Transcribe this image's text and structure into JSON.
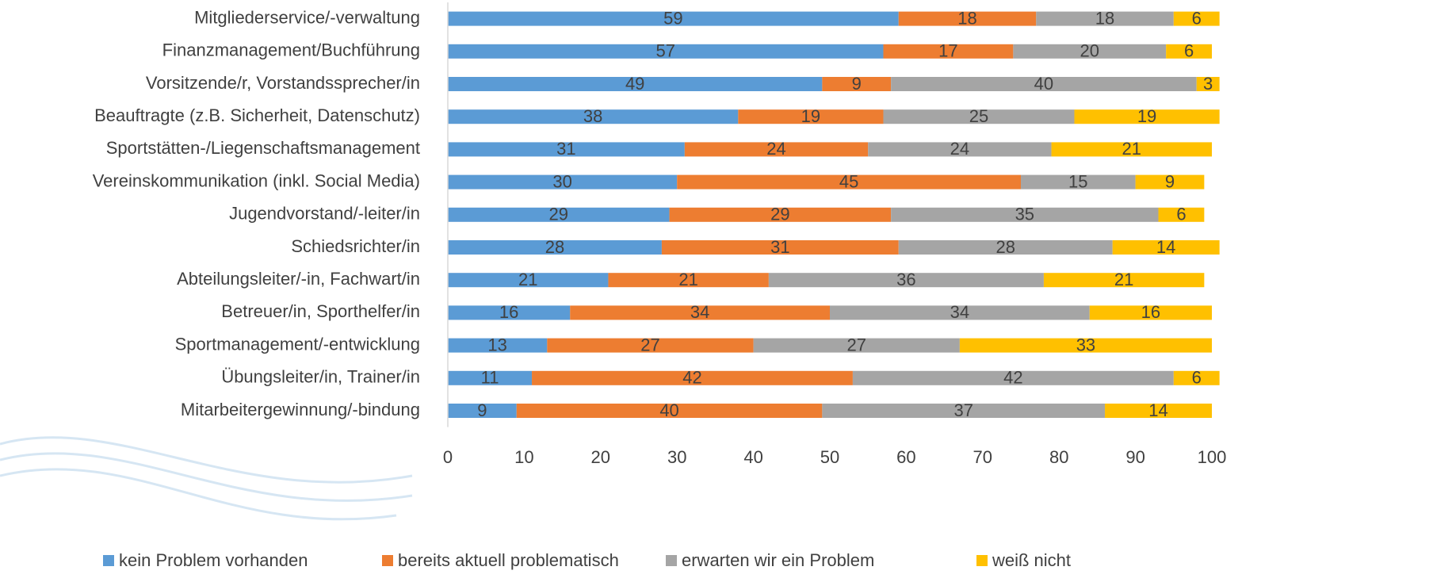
{
  "chart_data": {
    "type": "stacked-barh",
    "categories": [
      "Mitgliederservice/-verwaltung",
      "Finanzmanagement/Buchführung",
      "Vorsitzende/r, Vorstandssprecher/in",
      "Beauftragte (z.B. Sicherheit, Datenschutz)",
      "Sportstätten-/Liegenschaftsmanagement",
      "Vereinskommunikation (inkl. Social Media)",
      "Jugendvorstand/-leiter/in",
      "Schiedsrichter/in",
      "Abteilungsleiter/-in, Fachwart/in",
      "Betreuer/in, Sporthelfer/in",
      "Sportmanagement/-entwicklung",
      "Übungsleiter/in, Trainer/in",
      "Mitarbeitergewinnung/-bindung"
    ],
    "series": [
      {
        "name": "kein Problem vorhanden",
        "color": "#5b9bd5",
        "values": [
          59,
          57,
          49,
          38,
          31,
          30,
          29,
          28,
          21,
          16,
          13,
          11,
          9
        ]
      },
      {
        "name": "bereits aktuell problematisch",
        "color": "#ed7d31",
        "values": [
          18,
          17,
          9,
          19,
          24,
          45,
          29,
          31,
          21,
          34,
          27,
          42,
          40
        ]
      },
      {
        "name": "erwarten wir ein Problem",
        "color": "#a5a5a5",
        "values": [
          18,
          20,
          40,
          25,
          24,
          15,
          35,
          28,
          36,
          34,
          27,
          42,
          37
        ]
      },
      {
        "name": "weiß nicht",
        "color": "#ffc000",
        "values": [
          6,
          6,
          3,
          19,
          21,
          9,
          6,
          14,
          21,
          16,
          33,
          6,
          14
        ]
      }
    ],
    "xlim": [
      0,
      100
    ],
    "xticks": [
      0,
      10,
      20,
      30,
      40,
      50,
      60,
      70,
      80,
      90,
      100
    ],
    "legend": "bottom"
  }
}
